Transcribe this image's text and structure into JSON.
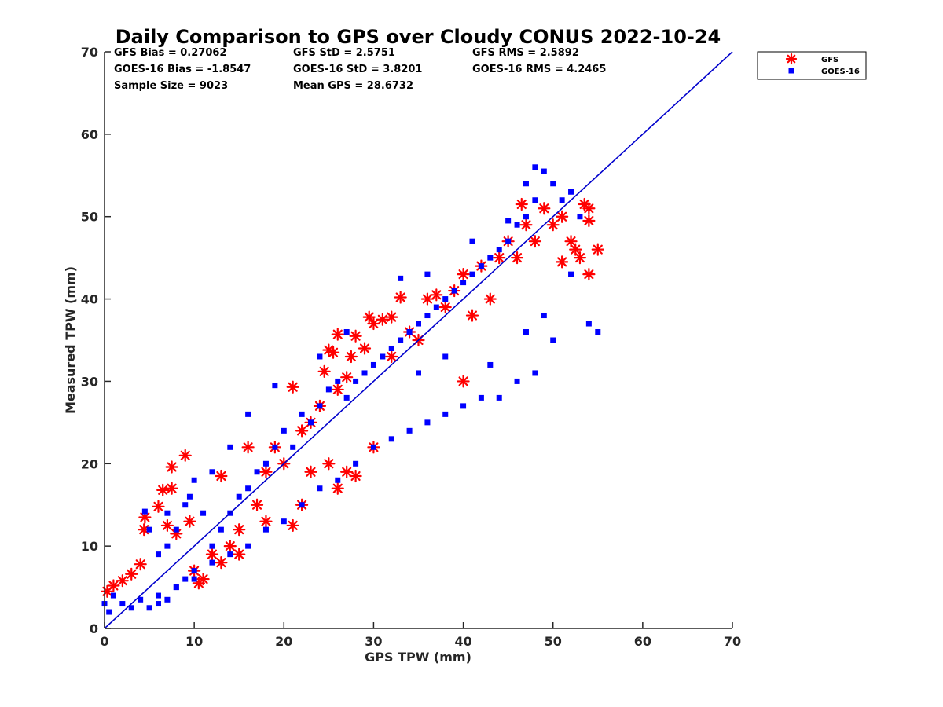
{
  "chart_data": {
    "type": "scatter",
    "title": "Daily Comparison to GPS over Cloudy CONUS 2022-10-24",
    "xlabel": "GPS TPW (mm)",
    "ylabel": "Measured TPW (mm)",
    "xlim": [
      0,
      70
    ],
    "ylim": [
      0,
      70
    ],
    "xticks": [
      0,
      10,
      20,
      30,
      40,
      50,
      60,
      70
    ],
    "yticks": [
      0,
      10,
      20,
      30,
      40,
      50,
      60,
      70
    ],
    "grid": false,
    "legend_position": "outside top-right",
    "stats": [
      [
        "GFS Bias = 0.27062",
        "GFS StD = 2.5751",
        "GFS RMS = 2.5892"
      ],
      [
        "GOES-16 Bias = -1.8547",
        "GOES-16 StD = 3.8201",
        "GOES-16 RMS = 4.2465"
      ],
      [
        "Sample Size = 9023",
        "Mean GPS = 28.6732",
        ""
      ]
    ],
    "reference_line": {
      "x": [
        0,
        70
      ],
      "y": [
        0,
        70
      ],
      "color": "#0000cc"
    },
    "series": [
      {
        "name": "GFS",
        "marker": "asterisk",
        "color": "#ff0000",
        "points": [
          [
            0.3,
            4.5
          ],
          [
            1,
            5.2
          ],
          [
            2,
            5.8
          ],
          [
            3,
            6.6
          ],
          [
            4,
            7.8
          ],
          [
            4.5,
            13.5
          ],
          [
            4.4,
            12
          ],
          [
            6,
            14.8
          ],
          [
            6.5,
            16.8
          ],
          [
            7.5,
            17
          ],
          [
            7.5,
            19.6
          ],
          [
            9,
            21
          ],
          [
            7,
            12.5
          ],
          [
            8,
            11.5
          ],
          [
            9.5,
            13
          ],
          [
            10,
            7
          ],
          [
            10.5,
            5.5
          ],
          [
            12,
            9
          ],
          [
            13,
            8
          ],
          [
            13,
            18.5
          ],
          [
            14,
            10
          ],
          [
            15,
            12
          ],
          [
            16,
            22
          ],
          [
            17,
            15
          ],
          [
            18,
            19
          ],
          [
            19,
            22
          ],
          [
            20,
            20
          ],
          [
            21,
            12.5
          ],
          [
            21,
            29.3
          ],
          [
            22,
            24
          ],
          [
            23,
            25
          ],
          [
            24,
            27
          ],
          [
            24.5,
            31.2
          ],
          [
            25,
            33.8
          ],
          [
            25.5,
            33.5
          ],
          [
            26,
            35.7
          ],
          [
            26,
            29
          ],
          [
            27,
            30.5
          ],
          [
            27.5,
            33
          ],
          [
            28,
            35.5
          ],
          [
            29,
            34
          ],
          [
            29.5,
            37.8
          ],
          [
            30,
            37
          ],
          [
            31,
            37.5
          ],
          [
            32,
            37.8
          ],
          [
            32,
            33
          ],
          [
            33,
            40.2
          ],
          [
            34,
            36
          ],
          [
            35,
            35
          ],
          [
            36,
            40
          ],
          [
            37,
            40.5
          ],
          [
            38,
            39
          ],
          [
            39,
            41
          ],
          [
            40,
            43
          ],
          [
            40,
            30
          ],
          [
            41,
            38
          ],
          [
            42,
            44
          ],
          [
            43,
            40
          ],
          [
            44,
            45
          ],
          [
            45,
            47
          ],
          [
            46,
            45
          ],
          [
            46.5,
            51.5
          ],
          [
            47,
            49
          ],
          [
            48,
            47
          ],
          [
            49,
            51
          ],
          [
            50,
            49
          ],
          [
            51,
            44.5
          ],
          [
            51,
            50
          ],
          [
            52,
            47
          ],
          [
            52.5,
            46
          ],
          [
            53,
            45
          ],
          [
            53.5,
            51.5
          ],
          [
            54,
            51
          ],
          [
            54,
            49.5
          ],
          [
            54,
            43
          ],
          [
            55,
            46
          ],
          [
            26,
            17
          ],
          [
            27,
            19
          ],
          [
            28,
            18.5
          ],
          [
            25,
            20
          ],
          [
            22,
            15
          ],
          [
            30,
            22
          ],
          [
            23,
            19
          ],
          [
            18,
            13
          ],
          [
            15,
            9
          ],
          [
            11,
            6
          ]
        ]
      },
      {
        "name": "GOES-16",
        "marker": "square",
        "color": "#0000ff",
        "points": [
          [
            0,
            3
          ],
          [
            0.5,
            2
          ],
          [
            1,
            4
          ],
          [
            2,
            3
          ],
          [
            3,
            2.5
          ],
          [
            4,
            3.5
          ],
          [
            5,
            2.5
          ],
          [
            6,
            4
          ],
          [
            7,
            3.5
          ],
          [
            8,
            5
          ],
          [
            9,
            6
          ],
          [
            10,
            6
          ],
          [
            4.5,
            14.2
          ],
          [
            5,
            12
          ],
          [
            6,
            9
          ],
          [
            7,
            10
          ],
          [
            8,
            12
          ],
          [
            9,
            15
          ],
          [
            10,
            18
          ],
          [
            11,
            14
          ],
          [
            12,
            10
          ],
          [
            13,
            12
          ],
          [
            14,
            14
          ],
          [
            15,
            16
          ],
          [
            16,
            17
          ],
          [
            17,
            19
          ],
          [
            18,
            20
          ],
          [
            19,
            22
          ],
          [
            20,
            24
          ],
          [
            21,
            22
          ],
          [
            22,
            26
          ],
          [
            23,
            25
          ],
          [
            24,
            27
          ],
          [
            25,
            29
          ],
          [
            26,
            30
          ],
          [
            27,
            28
          ],
          [
            28,
            30
          ],
          [
            29,
            31
          ],
          [
            30,
            32
          ],
          [
            31,
            33
          ],
          [
            32,
            34
          ],
          [
            33,
            35
          ],
          [
            34,
            36
          ],
          [
            35,
            37
          ],
          [
            36,
            38
          ],
          [
            37,
            39
          ],
          [
            38,
            40
          ],
          [
            39,
            41
          ],
          [
            40,
            42
          ],
          [
            41,
            43
          ],
          [
            42,
            44
          ],
          [
            43,
            45
          ],
          [
            44,
            46
          ],
          [
            45,
            47
          ],
          [
            46,
            49
          ],
          [
            47,
            50
          ],
          [
            48,
            52
          ],
          [
            48,
            56
          ],
          [
            49,
            55.5
          ],
          [
            50,
            54
          ],
          [
            51,
            52
          ],
          [
            52,
            53
          ],
          [
            53,
            50
          ],
          [
            54,
            37
          ],
          [
            55,
            36
          ],
          [
            50,
            35
          ],
          [
            48,
            31
          ],
          [
            46,
            30
          ],
          [
            44,
            28
          ],
          [
            42,
            28
          ],
          [
            40,
            27
          ],
          [
            38,
            26
          ],
          [
            36,
            25
          ],
          [
            34,
            24
          ],
          [
            32,
            23
          ],
          [
            30,
            22
          ],
          [
            28,
            20
          ],
          [
            26,
            18
          ],
          [
            24,
            17
          ],
          [
            22,
            15
          ],
          [
            20,
            13
          ],
          [
            18,
            12
          ],
          [
            16,
            10
          ],
          [
            14,
            9
          ],
          [
            12,
            8
          ],
          [
            10,
            7
          ],
          [
            8,
            5
          ],
          [
            6,
            3
          ],
          [
            19,
            29.5
          ],
          [
            16,
            26
          ],
          [
            14,
            22
          ],
          [
            12,
            19
          ],
          [
            9.5,
            16
          ],
          [
            7,
            14
          ],
          [
            33,
            42.5
          ],
          [
            36,
            43
          ],
          [
            41,
            47
          ],
          [
            45,
            49.5
          ],
          [
            47,
            54
          ],
          [
            27,
            36
          ],
          [
            24,
            33
          ],
          [
            43,
            32
          ],
          [
            47,
            36
          ],
          [
            49,
            38
          ],
          [
            52,
            43
          ],
          [
            38,
            33
          ],
          [
            35,
            31
          ]
        ]
      }
    ]
  }
}
